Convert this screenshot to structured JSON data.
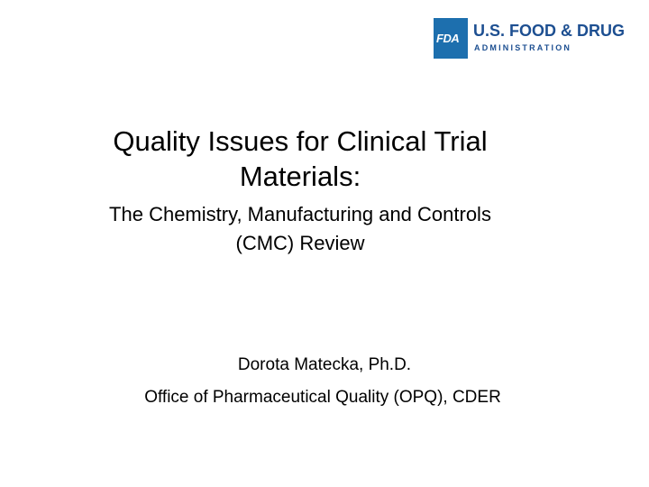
{
  "logo": {
    "mark": "FDA",
    "name": "U.S. FOOD & DRUG",
    "subname": "ADMINISTRATION"
  },
  "title_lines": [
    "Quality Issues for Clinical Trial",
    "Materials:"
  ],
  "subtitle_lines": [
    "The Chemistry, Manufacturing and Controls",
    "(CMC) Review"
  ],
  "author": "Dorota Matecka, Ph.D.",
  "affiliation": "Office of Pharmaceutical Quality (OPQ), CDER"
}
